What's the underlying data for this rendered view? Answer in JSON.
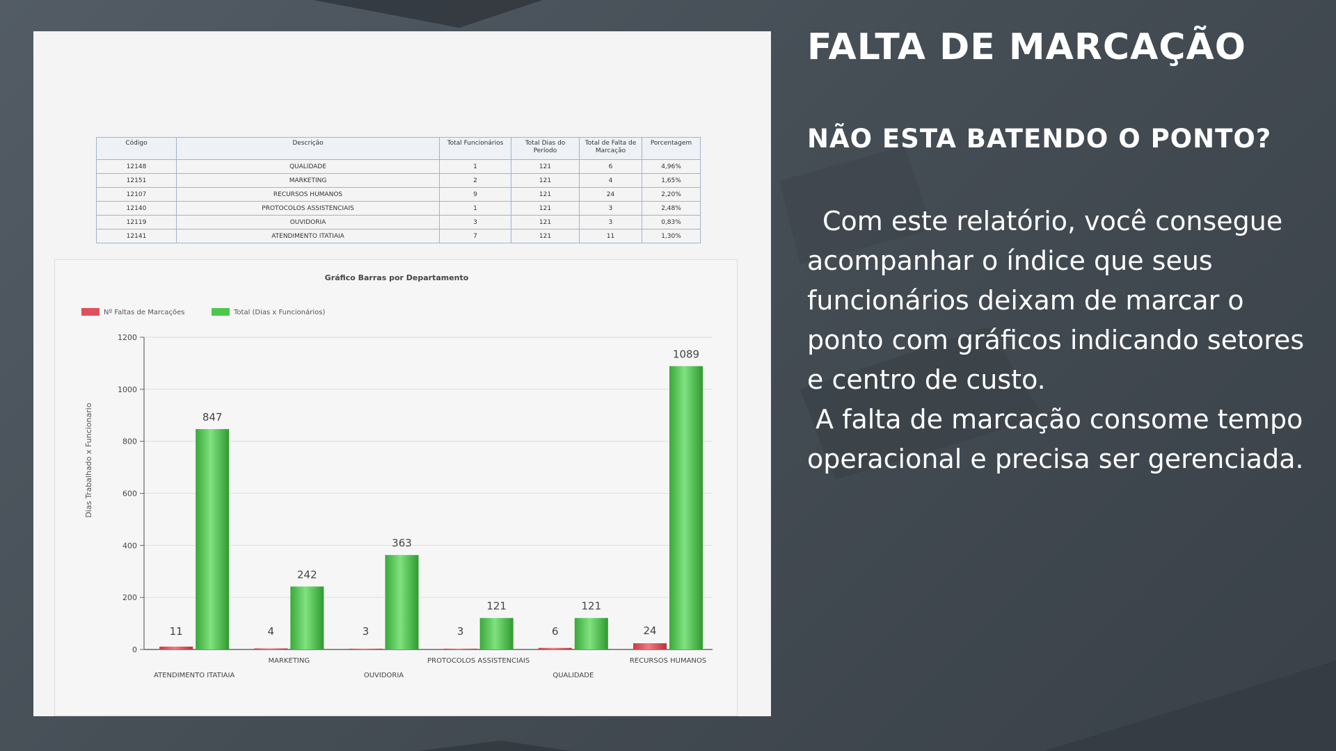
{
  "slide": {
    "title": "FALTA DE MARCAÇÃO",
    "subtitle": "NÃO ESTA BATENDO O PONTO?",
    "paragraph_1": "Com este relatório, você consegue acompanhar o índice que seus funcionários deixam de marcar o ponto com gráficos indicando setores e centro de custo.",
    "paragraph_2": "A falta de marcação consome tempo operacional e precisa ser gerenciada."
  },
  "report_table": {
    "headers": [
      "Código",
      "Descrição",
      "Total Funcionários",
      "Total Dias do Período",
      "Total de Falta de Marcação",
      "Porcentagem"
    ],
    "rows": [
      [
        "12148",
        "QUALIDADE",
        "1",
        "121",
        "6",
        "4,96%"
      ],
      [
        "12151",
        "MARKETING",
        "2",
        "121",
        "4",
        "1,65%"
      ],
      [
        "12107",
        "RECURSOS HUMANOS",
        "9",
        "121",
        "24",
        "2,20%"
      ],
      [
        "12140",
        "PROTOCOLOS ASSISTENCIAIS",
        "1",
        "121",
        "3",
        "2,48%"
      ],
      [
        "12119",
        "OUVIDORIA",
        "3",
        "121",
        "3",
        "0,83%"
      ],
      [
        "12141",
        "ATENDIMENTO ITATIAIA",
        "7",
        "121",
        "11",
        "1,30%"
      ]
    ]
  },
  "chart_data": {
    "type": "bar",
    "title": "Gráfico Barras por Departamento",
    "ylabel": "Dias Trabalhado x Funcionario",
    "xlabel": "",
    "categories": [
      "ATENDIMENTO ITATIAIA",
      "MARKETING",
      "OUVIDORIA",
      "PROTOCOLOS ASSISTENCIAIS",
      "QUALIDADE",
      "RECURSOS HUMANOS"
    ],
    "series": [
      {
        "name": "Nº Faltas de Marcações",
        "values": [
          11,
          4,
          3,
          3,
          6,
          24
        ],
        "color": "#e0505a"
      },
      {
        "name": "Total (Dias x Funcionários)",
        "values": [
          847,
          242,
          363,
          121,
          121,
          1089
        ],
        "color": "#4cc94c"
      }
    ],
    "ylim": [
      0,
      1200
    ],
    "yticks": [
      "0",
      "200",
      "400",
      "600",
      "800",
      "1000",
      "1200"
    ],
    "grid": true,
    "legend": "top-left"
  }
}
